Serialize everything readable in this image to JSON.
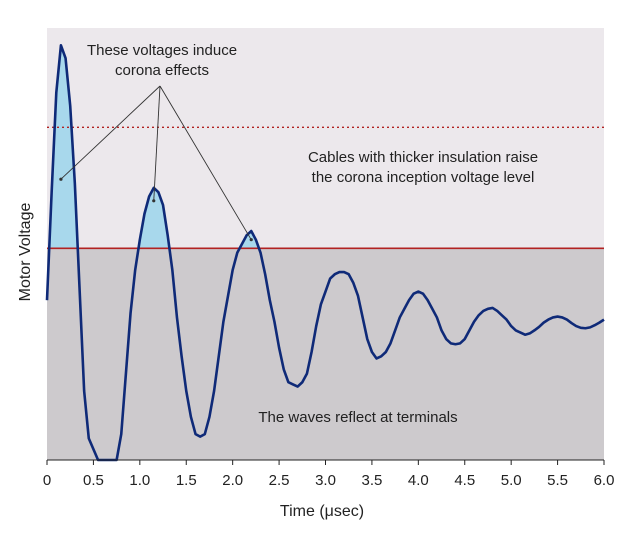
{
  "chart_data": {
    "type": "line",
    "xlabel": "Time (μsec)",
    "ylabel": "Motor Voltage",
    "x_ticks": [
      "0",
      "0.5",
      "1.0",
      "1.5",
      "2.0",
      "2.5",
      "3.0",
      "3.5",
      "4.0",
      "4.5",
      "5.0",
      "5.5",
      "6.0"
    ],
    "xlim": [
      0,
      6.0
    ],
    "ylim": [
      0,
      1
    ],
    "regions": {
      "upper_band_color": "#ece8ec",
      "lower_band_color": "#cdcacd",
      "shaded_peak_color": "#a8d8ec",
      "waveform_color": "#0f2a78",
      "threshold_color": "#b22222"
    },
    "thresholds": {
      "corona_level": 0.49,
      "raised_corona_level": 0.77
    },
    "annotations": {
      "corona_note": "These voltages induce\ncorona effects",
      "insulation_note": "Cables with thicker insulation raise\nthe corona inception voltage level",
      "reflect_note": "The waves reflect at terminals"
    },
    "waveform": [
      [
        0.0,
        0.37
      ],
      [
        0.05,
        0.62
      ],
      [
        0.1,
        0.85
      ],
      [
        0.15,
        0.96
      ],
      [
        0.2,
        0.93
      ],
      [
        0.25,
        0.82
      ],
      [
        0.3,
        0.64
      ],
      [
        0.35,
        0.4
      ],
      [
        0.4,
        0.16
      ],
      [
        0.45,
        0.05
      ],
      [
        0.55,
        0.0
      ],
      [
        0.75,
        0.0
      ],
      [
        0.8,
        0.06
      ],
      [
        0.85,
        0.2
      ],
      [
        0.9,
        0.34
      ],
      [
        0.95,
        0.44
      ],
      [
        1.0,
        0.51
      ],
      [
        1.05,
        0.57
      ],
      [
        1.1,
        0.61
      ],
      [
        1.15,
        0.63
      ],
      [
        1.2,
        0.62
      ],
      [
        1.25,
        0.59
      ],
      [
        1.3,
        0.52
      ],
      [
        1.35,
        0.44
      ],
      [
        1.4,
        0.33
      ],
      [
        1.45,
        0.24
      ],
      [
        1.5,
        0.16
      ],
      [
        1.55,
        0.1
      ],
      [
        1.6,
        0.06
      ],
      [
        1.65,
        0.054
      ],
      [
        1.7,
        0.06
      ],
      [
        1.75,
        0.1
      ],
      [
        1.8,
        0.16
      ],
      [
        1.85,
        0.24
      ],
      [
        1.9,
        0.32
      ],
      [
        1.95,
        0.38
      ],
      [
        2.0,
        0.44
      ],
      [
        2.05,
        0.48
      ],
      [
        2.1,
        0.5
      ],
      [
        2.15,
        0.52
      ],
      [
        2.2,
        0.53
      ],
      [
        2.25,
        0.51
      ],
      [
        2.3,
        0.48
      ],
      [
        2.35,
        0.43
      ],
      [
        2.4,
        0.37
      ],
      [
        2.45,
        0.32
      ],
      [
        2.5,
        0.26
      ],
      [
        2.55,
        0.21
      ],
      [
        2.6,
        0.18
      ],
      [
        2.65,
        0.175
      ],
      [
        2.7,
        0.17
      ],
      [
        2.75,
        0.18
      ],
      [
        2.8,
        0.2
      ],
      [
        2.85,
        0.25
      ],
      [
        2.9,
        0.31
      ],
      [
        2.95,
        0.36
      ],
      [
        3.0,
        0.39
      ],
      [
        3.05,
        0.42
      ],
      [
        3.1,
        0.43
      ],
      [
        3.15,
        0.435
      ],
      [
        3.2,
        0.435
      ],
      [
        3.25,
        0.43
      ],
      [
        3.3,
        0.41
      ],
      [
        3.35,
        0.38
      ],
      [
        3.4,
        0.33
      ],
      [
        3.45,
        0.28
      ],
      [
        3.5,
        0.25
      ],
      [
        3.55,
        0.235
      ],
      [
        3.6,
        0.24
      ],
      [
        3.65,
        0.25
      ],
      [
        3.7,
        0.27
      ],
      [
        3.75,
        0.3
      ],
      [
        3.8,
        0.33
      ],
      [
        3.85,
        0.35
      ],
      [
        3.9,
        0.37
      ],
      [
        3.95,
        0.385
      ],
      [
        4.0,
        0.39
      ],
      [
        4.05,
        0.385
      ],
      [
        4.1,
        0.37
      ],
      [
        4.15,
        0.35
      ],
      [
        4.2,
        0.33
      ],
      [
        4.25,
        0.3
      ],
      [
        4.3,
        0.28
      ],
      [
        4.35,
        0.27
      ],
      [
        4.4,
        0.268
      ],
      [
        4.45,
        0.27
      ],
      [
        4.5,
        0.28
      ],
      [
        4.55,
        0.3
      ],
      [
        4.6,
        0.32
      ],
      [
        4.65,
        0.335
      ],
      [
        4.7,
        0.345
      ],
      [
        4.75,
        0.35
      ],
      [
        4.8,
        0.352
      ],
      [
        4.85,
        0.345
      ],
      [
        4.9,
        0.335
      ],
      [
        4.95,
        0.325
      ],
      [
        5.0,
        0.31
      ],
      [
        5.05,
        0.3
      ],
      [
        5.1,
        0.295
      ],
      [
        5.15,
        0.29
      ],
      [
        5.2,
        0.293
      ],
      [
        5.25,
        0.3
      ],
      [
        5.3,
        0.308
      ],
      [
        5.35,
        0.318
      ],
      [
        5.4,
        0.325
      ],
      [
        5.45,
        0.33
      ],
      [
        5.5,
        0.332
      ],
      [
        5.55,
        0.33
      ],
      [
        5.6,
        0.325
      ],
      [
        5.65,
        0.317
      ],
      [
        5.7,
        0.31
      ],
      [
        5.75,
        0.306
      ],
      [
        5.8,
        0.305
      ],
      [
        5.85,
        0.307
      ],
      [
        5.9,
        0.312
      ],
      [
        5.95,
        0.318
      ],
      [
        6.0,
        0.325
      ]
    ],
    "shaded_peaks": [
      [
        0.0,
        0.37
      ],
      [
        0.8,
        1.0
      ],
      [
        1.7,
        1.0
      ]
    ]
  }
}
